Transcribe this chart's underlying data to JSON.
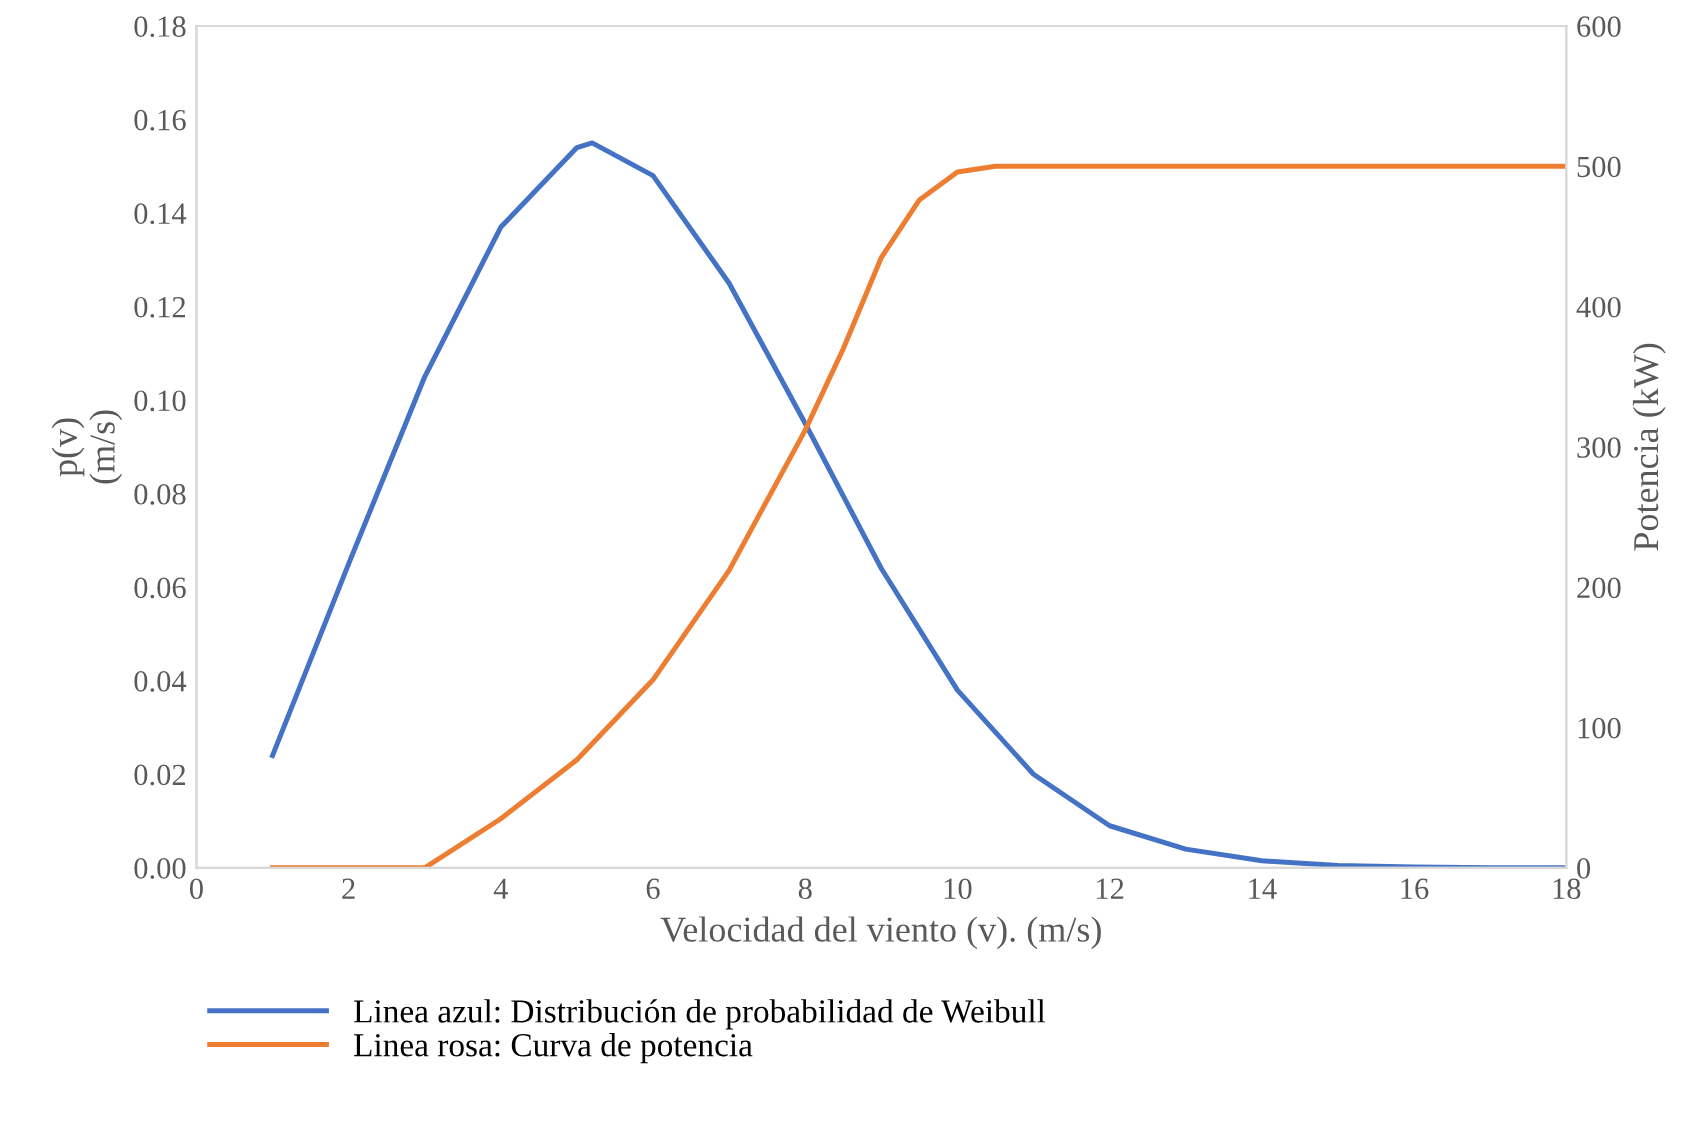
{
  "chart_data": {
    "type": "line",
    "xlabel": "Velocidad del viento (v). (m/s)",
    "ylabel": "p(v)\n(m/s)",
    "y2label": "Potencia (kW)",
    "xlim": [
      0,
      18
    ],
    "xticks": [
      0,
      2,
      4,
      6,
      8,
      10,
      12,
      14,
      16,
      18
    ],
    "ylim": [
      0,
      0.18
    ],
    "yticks": [
      {
        "value": 0,
        "label": "0.00"
      },
      {
        "value": 0.02,
        "label": "0.02"
      },
      {
        "value": 0.04,
        "label": "0.04"
      },
      {
        "value": 0.06,
        "label": "0.06"
      },
      {
        "value": 0.08,
        "label": "0.08"
      },
      {
        "value": 0.1,
        "label": "0.10"
      },
      {
        "value": 0.12,
        "label": "0.12"
      },
      {
        "value": 0.14,
        "label": "0.14"
      },
      {
        "value": 0.16,
        "label": "0.16"
      },
      {
        "value": 0.18,
        "label": "0.18"
      }
    ],
    "y2lim": [
      0,
      600
    ],
    "y2ticks": [
      0,
      100,
      200,
      300,
      400,
      500,
      600
    ],
    "legend": "bottom",
    "grid": false,
    "marker": "none",
    "line_style": "solid",
    "series": [
      {
        "name": "Linea azul: Distribución de probabilidad de Weibull",
        "color": "#4472c4",
        "x": [
          1,
          2,
          3,
          4,
          5,
          5.2,
          6,
          7,
          8,
          9,
          10,
          11,
          12,
          13,
          14,
          15,
          16,
          17,
          18
        ],
        "values": [
          0.024,
          0.065,
          0.105,
          0.137,
          0.154,
          0.155,
          0.148,
          0.125,
          0.095,
          0.064,
          0.038,
          0.02,
          0.009,
          0.004,
          0.0015,
          0.0005,
          0.0002,
          0,
          0
        ]
      },
      {
        "name": "Linea rosa: Curva de potencia",
        "color": "#ed7d31",
        "axis": "y2",
        "x": [
          1,
          2,
          3,
          4,
          5,
          6,
          7,
          8,
          8.5,
          9,
          9.5,
          10,
          10.5,
          11,
          12,
          13,
          14,
          15,
          16,
          17,
          18
        ],
        "values": [
          0,
          0,
          0,
          35,
          77,
          134,
          212,
          312,
          370,
          435,
          476,
          496,
          500,
          500,
          500,
          500,
          500,
          500,
          500,
          500,
          500
        ]
      }
    ]
  }
}
